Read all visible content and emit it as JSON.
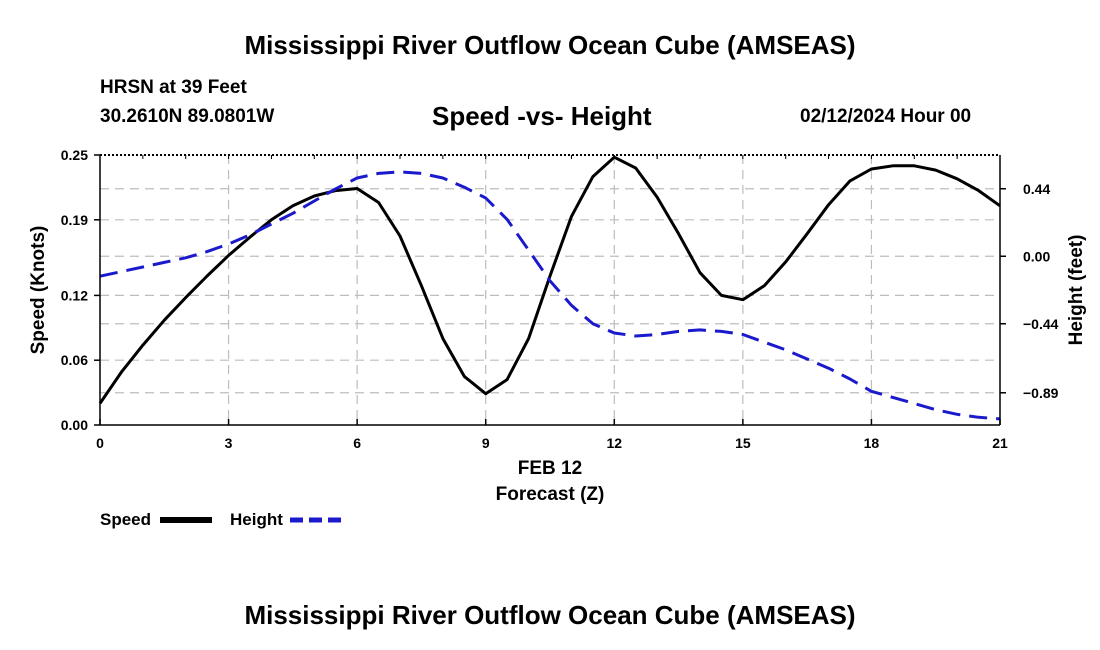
{
  "header": {
    "title": "Mississippi River Outflow Ocean Cube (AMSEAS)",
    "station": "HRSN at 39 Feet",
    "coords": "30.2610N  89.0801W",
    "subtitle": "Speed -vs- Height",
    "datetime": "02/12/2024 Hour 00"
  },
  "footer": {
    "title": "Mississippi River Outflow Ocean Cube (AMSEAS)"
  },
  "chart_data": {
    "type": "line",
    "title": "Speed -vs- Height",
    "xlabel_date": "FEB 12",
    "xlabel": "Forecast (Z)",
    "ylabel_left": "Speed (Knots)",
    "ylabel_right": "Height (feet)",
    "xlim": [
      0,
      21
    ],
    "x_ticks": [
      0,
      3,
      6,
      9,
      12,
      15,
      18,
      21
    ],
    "x_tick_labels": [
      "0",
      "3",
      "6",
      "9",
      "12",
      "15",
      "18",
      "21"
    ],
    "ylim_left": [
      0,
      0.25
    ],
    "y_left_ticks": [
      0.0,
      0.06,
      0.12,
      0.19,
      0.25
    ],
    "y_left_tick_labels": [
      "0.00",
      "0.06",
      "0.12",
      "0.19",
      "0.25"
    ],
    "ylim_right": [
      -1.1,
      0.66
    ],
    "y_right_ticks": [
      0.44,
      0.0,
      -0.44,
      -0.89
    ],
    "y_right_tick_labels": [
      "0.44",
      "0.00",
      "−0.44",
      "−0.89"
    ],
    "grid": true,
    "series": [
      {
        "name": "Speed",
        "axis": "left",
        "color": "#000000",
        "dash": "solid",
        "x": [
          0,
          0.5,
          1,
          1.5,
          2,
          2.5,
          3,
          3.5,
          4,
          4.5,
          5,
          5.5,
          6,
          6.5,
          7,
          7.5,
          8,
          8.5,
          9,
          9.5,
          10,
          10.5,
          11,
          11.5,
          12,
          12.5,
          13,
          13.5,
          14,
          14.5,
          15,
          15.5,
          16,
          16.5,
          17,
          17.5,
          18,
          18.5,
          19,
          19.5,
          20,
          20.5,
          21
        ],
        "values": [
          0.02,
          0.049,
          0.074,
          0.097,
          0.118,
          0.138,
          0.157,
          0.174,
          0.19,
          0.203,
          0.212,
          0.217,
          0.219,
          0.206,
          0.175,
          0.129,
          0.08,
          0.045,
          0.029,
          0.042,
          0.08,
          0.138,
          0.193,
          0.23,
          0.248,
          0.238,
          0.211,
          0.177,
          0.141,
          0.12,
          0.116,
          0.129,
          0.151,
          0.177,
          0.204,
          0.226,
          0.237,
          0.24,
          0.24,
          0.236,
          0.228,
          0.217,
          0.203
        ]
      },
      {
        "name": "Height",
        "axis": "right",
        "color": "#1a1acc",
        "dash": "dashed",
        "x": [
          0,
          0.5,
          1,
          1.5,
          2,
          2.5,
          3,
          3.5,
          4,
          4.5,
          5,
          5.5,
          6,
          6.5,
          7,
          7.5,
          8,
          8.5,
          9,
          9.5,
          10,
          10.5,
          11,
          11.5,
          12,
          12.5,
          13,
          13.5,
          14,
          14.5,
          15,
          15.5,
          16,
          16.5,
          17,
          17.5,
          18,
          18.5,
          19,
          19.5,
          20,
          20.5,
          21
        ],
        "values": [
          -0.13,
          -0.1,
          -0.07,
          -0.04,
          -0.01,
          0.03,
          0.08,
          0.14,
          0.21,
          0.28,
          0.36,
          0.44,
          0.51,
          0.54,
          0.55,
          0.54,
          0.51,
          0.45,
          0.38,
          0.24,
          0.04,
          -0.16,
          -0.32,
          -0.44,
          -0.5,
          -0.52,
          -0.51,
          -0.49,
          -0.48,
          -0.49,
          -0.51,
          -0.56,
          -0.61,
          -0.67,
          -0.73,
          -0.8,
          -0.88,
          -0.92,
          -0.96,
          -1.0,
          -1.03,
          -1.05,
          -1.06
        ]
      }
    ],
    "legend": [
      {
        "label": "Speed",
        "color": "#000000",
        "dash": "solid"
      },
      {
        "label": "Height",
        "color": "#1a1acc",
        "dash": "dashed"
      }
    ],
    "legend_position": "bottom-left"
  }
}
